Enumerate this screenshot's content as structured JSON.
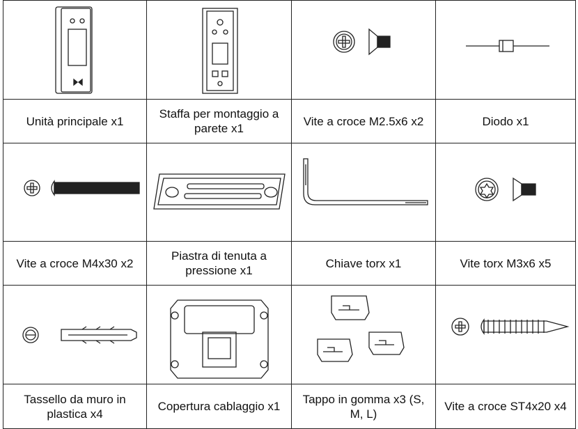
{
  "items": [
    {
      "label": "Unità principale x1"
    },
    {
      "label": "Staffa per montaggio a parete x1"
    },
    {
      "label": "Vite a croce M2.5x6 x2"
    },
    {
      "label": "Diodo x1"
    },
    {
      "label": "Vite a croce M4x30 x2"
    },
    {
      "label": "Piastra di tenuta a pressione x1"
    },
    {
      "label": "Chiave torx x1"
    },
    {
      "label": "Vite torx M3x6 x5"
    },
    {
      "label": "Tassello da muro in plastica x4"
    },
    {
      "label": "Copertura cablaggio x1"
    },
    {
      "label": "Tappo in gomma x3 (S, M, L)"
    },
    {
      "label": "Vite a croce ST4x20 x4"
    }
  ]
}
